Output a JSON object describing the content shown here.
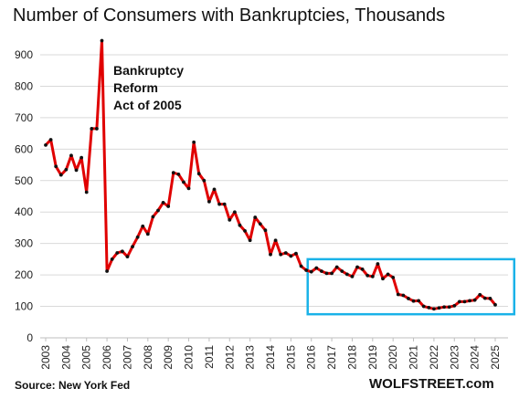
{
  "title": "Number of Consumers with Bankruptcies, Thousands",
  "source": "Source: New York Fed",
  "brand": "WOLFSTREET.com",
  "colors": {
    "line": "#e00000",
    "marker": "#111111",
    "box": "#1ab2e8",
    "grid": "#d9d9d9"
  },
  "chart_data": {
    "type": "line",
    "title": "Number of Consumers with Bankruptcies, Thousands",
    "xlabel": "",
    "ylabel": "",
    "ylim": [
      0,
      950
    ],
    "yticks": [
      0,
      100,
      200,
      300,
      400,
      500,
      600,
      700,
      800,
      900
    ],
    "xticks": [
      "2003",
      "2004",
      "2005",
      "2006",
      "2007",
      "2008",
      "2009",
      "2010",
      "2011",
      "2012",
      "2013",
      "2014",
      "2015",
      "2016",
      "2017",
      "2018",
      "2019",
      "2020",
      "2021",
      "2022",
      "2023",
      "2024",
      "2025"
    ],
    "grid": true,
    "annotation": {
      "lines": [
        "Bankruptcy",
        "Reform",
        "Act of 2005"
      ]
    },
    "highlight_box": {
      "x_range": [
        2016.0,
        2025.75
      ],
      "y_range": [
        75,
        250
      ]
    },
    "series": [
      {
        "x": [
          2003.0,
          2003.25,
          2003.5,
          2003.75,
          2004.0,
          2004.25,
          2004.5,
          2004.75,
          2005.0,
          2005.25,
          2005.5,
          2005.75,
          2006.0,
          2006.25,
          2006.5,
          2006.75,
          2007.0,
          2007.25,
          2007.5,
          2007.75,
          2008.0,
          2008.25,
          2008.5,
          2008.75,
          2009.0,
          2009.25,
          2009.5,
          2009.75,
          2010.0,
          2010.25,
          2010.5,
          2010.75,
          2011.0,
          2011.25,
          2011.5,
          2011.75,
          2012.0,
          2012.25,
          2012.5,
          2012.75,
          2013.0,
          2013.25,
          2013.5,
          2013.75,
          2014.0,
          2014.25,
          2014.5,
          2014.75,
          2015.0,
          2015.25,
          2015.5,
          2015.75,
          2016.0,
          2016.25,
          2016.5,
          2016.75,
          2017.0,
          2017.25,
          2017.5,
          2017.75,
          2018.0,
          2018.25,
          2018.5,
          2018.75,
          2019.0,
          2019.25,
          2019.5,
          2019.75,
          2020.0,
          2020.25,
          2020.5,
          2020.75,
          2021.0,
          2021.25,
          2021.5,
          2021.75,
          2022.0,
          2022.25,
          2022.5,
          2022.75,
          2023.0,
          2023.25,
          2023.5,
          2023.75,
          2024.0,
          2024.25,
          2024.5,
          2024.75,
          2025.0
        ],
        "y": [
          613,
          630,
          545,
          518,
          535,
          580,
          533,
          573,
          463,
          665,
          665,
          945,
          212,
          250,
          270,
          275,
          258,
          290,
          320,
          355,
          330,
          385,
          405,
          430,
          418,
          525,
          520,
          495,
          475,
          622,
          522,
          500,
          433,
          472,
          425,
          425,
          375,
          400,
          358,
          340,
          310,
          383,
          362,
          342,
          265,
          310,
          265,
          270,
          260,
          268,
          228,
          215,
          210,
          222,
          212,
          205,
          205,
          225,
          212,
          202,
          195,
          225,
          218,
          198,
          195,
          235,
          188,
          202,
          192,
          138,
          135,
          125,
          117,
          118,
          100,
          96,
          92,
          95,
          98,
          98,
          102,
          115,
          115,
          118,
          120,
          137,
          126,
          125,
          105
        ]
      }
    ]
  }
}
